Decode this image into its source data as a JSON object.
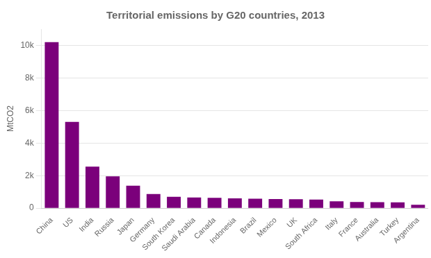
{
  "chart_data": {
    "type": "bar",
    "title": "Territorial emissions by G20 countries, 2013",
    "ylabel": "MtCO2",
    "categories": [
      "China",
      "US",
      "India",
      "Russia",
      "Japan",
      "Germany",
      "South Korea",
      "Saudi Arabia",
      "Canada",
      "Indonesia",
      "Brazil",
      "Mexico",
      "UK",
      "South Africa",
      "Italy",
      "France",
      "Australia",
      "Turkey",
      "Argentina"
    ],
    "values": [
      10200,
      5300,
      2550,
      1950,
      1380,
      870,
      700,
      660,
      630,
      600,
      580,
      560,
      550,
      530,
      420,
      380,
      370,
      360,
      210
    ],
    "color": "#7b007b",
    "ylim": [
      0,
      11000
    ],
    "yticks": [
      0,
      {
        "value": 2000,
        "label": "2k"
      },
      {
        "value": 4000,
        "label": "4k"
      },
      {
        "value": 6000,
        "label": "6k"
      },
      {
        "value": 8000,
        "label": "8k"
      },
      {
        "value": 10000,
        "label": "10k"
      }
    ],
    "grid": true
  }
}
